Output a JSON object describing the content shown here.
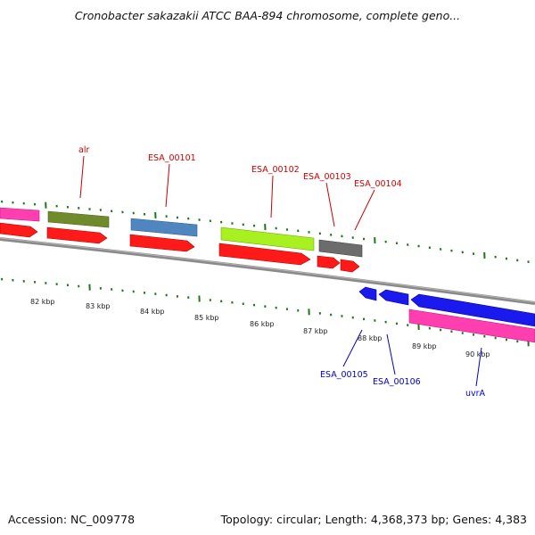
{
  "title": "Cronobacter sakazakii ATCC BAA-894 chromosome, complete geno...",
  "footer": {
    "accession": "Accession: NC_009778",
    "summary": "Topology: circular; Length: 4,368,373 bp; Genes: 4,383"
  },
  "scale_ticks": [
    "82 kbp",
    "83 kbp",
    "84 kbp",
    "85 kbp",
    "86 kbp",
    "87 kbp",
    "88 kbp",
    "89 kbp",
    "90 kbp"
  ],
  "gene_labels": {
    "top": [
      "alr",
      "ESA_00101",
      "ESA_00102",
      "ESA_00103",
      "ESA_00104"
    ],
    "bottom": [
      "ESA_00105",
      "ESA_00106",
      "uvrA"
    ]
  },
  "colors": {
    "label_top": "#cc0000",
    "label_bottom": "#0000cc",
    "tick": "#1a7a1a",
    "backbone": "#7a7a7a",
    "cds": "#ff0000",
    "cds_reverse": "#0000ee"
  }
}
